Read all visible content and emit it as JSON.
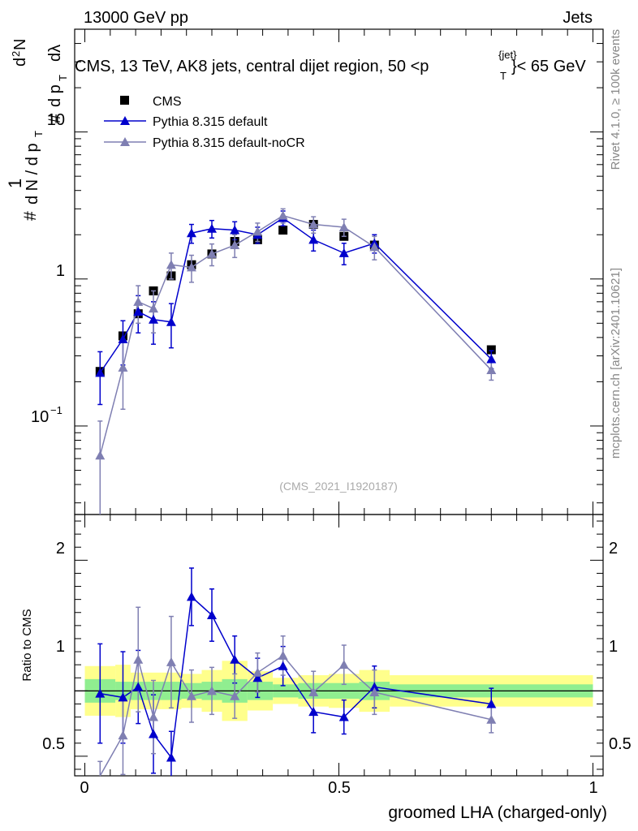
{
  "header": {
    "energy": "13000 GeV pp",
    "category": "Jets",
    "main_title": "CMS, 13 TeV, AK8 jets, central dijet region, 50 <p",
    "main_title_sup": "{jet}",
    "main_title_sub": "T",
    "main_title_end": "}< 65 GeV",
    "analysis_id": "(CMS_2021_I1920187)"
  },
  "side_labels": {
    "rivet": "Rivet 4.1.0, ≥ 100k events",
    "mcplots": "mcplots.cern.ch [arXiv:2401.10621]"
  },
  "colors": {
    "cms": "#000000",
    "default": "#0000cc",
    "nocr": "#7f7fb2",
    "band_inner": "#90ee90",
    "band_outer": "#ffff8c"
  },
  "chart_data": [
    {
      "type": "scatter",
      "name": "main",
      "yscale": "log",
      "ylim": [
        0.025,
        50
      ],
      "xlim": [
        -0.02,
        1.02
      ],
      "ylabel": "# 1/(d N / d p_T) # d²N/(d p_T dλ)",
      "ylabel_parts": {
        "hash": "#",
        "one": "1",
        "dN": "d N / d p",
        "T": "T",
        "d2N": "d",
        "two": "2",
        "N": "N",
        "dp": "d p",
        "dlambda": "dλ"
      },
      "yticks": [
        {
          "label_base": "10",
          "label_exp": "−1",
          "value": 0.1
        },
        {
          "label": "1",
          "value": 1
        },
        {
          "label": "10",
          "value": 10
        }
      ],
      "legend": [
        "CMS",
        "Pythia 8.315 default",
        "Pythia 8.315 default-noCR"
      ],
      "series": [
        {
          "name": "CMS",
          "x": [
            0.03,
            0.075,
            0.105,
            0.135,
            0.17,
            0.21,
            0.25,
            0.295,
            0.34,
            0.39,
            0.45,
            0.51,
            0.57,
            0.8
          ],
          "y": [
            0.235,
            0.41,
            0.58,
            0.83,
            1.05,
            1.25,
            1.48,
            1.8,
            1.85,
            2.15,
            2.35,
            1.95,
            1.7,
            0.33
          ]
        },
        {
          "name": "Pythia 8.315 default",
          "x": [
            0.03,
            0.075,
            0.105,
            0.135,
            0.17,
            0.21,
            0.25,
            0.295,
            0.34,
            0.39,
            0.45,
            0.51,
            0.57,
            0.8
          ],
          "y": [
            0.23,
            0.39,
            0.6,
            0.53,
            0.51,
            2.05,
            2.2,
            2.15,
            2.0,
            2.6,
            1.85,
            1.5,
            1.75,
            0.285
          ],
          "err": [
            0.09,
            0.13,
            0.17,
            0.17,
            0.17,
            0.3,
            0.3,
            0.3,
            0.25,
            0.3,
            0.3,
            0.25,
            0.25,
            0.04
          ]
        },
        {
          "name": "Pythia 8.315 default-noCR",
          "x": [
            0.03,
            0.075,
            0.105,
            0.135,
            0.17,
            0.21,
            0.25,
            0.295,
            0.34,
            0.39,
            0.45,
            0.51,
            0.57,
            0.8
          ],
          "y": [
            0.063,
            0.25,
            0.7,
            0.63,
            1.25,
            1.2,
            1.48,
            1.7,
            2.1,
            2.7,
            2.35,
            2.25,
            1.65,
            0.24
          ],
          "err": [
            0.045,
            0.12,
            0.2,
            0.2,
            0.25,
            0.25,
            0.25,
            0.3,
            0.3,
            0.3,
            0.3,
            0.3,
            0.3,
            0.035
          ]
        }
      ]
    },
    {
      "type": "scatter",
      "name": "ratio",
      "ylim": [
        0.35,
        2.35
      ],
      "xlim": [
        -0.02,
        1.02
      ],
      "xlabel": "groomed LHA (charged-only)",
      "ylabel": "Ratio to CMS",
      "yticks": [
        {
          "label": "0.5",
          "value": 0.5
        },
        {
          "label": "1",
          "value": 1
        },
        {
          "label": "2",
          "value": 2
        }
      ],
      "xticks": [
        {
          "label": "0",
          "value": 0
        },
        {
          "label": "0.5",
          "value": 0.5
        },
        {
          "label": "1",
          "value": 1
        }
      ],
      "bands": [
        {
          "x0": 0.0,
          "x1": 0.06,
          "inner": 0.09,
          "outer": 0.19
        },
        {
          "x0": 0.06,
          "x1": 0.09,
          "inner": 0.07,
          "outer": 0.2
        },
        {
          "x0": 0.09,
          "x1": 0.12,
          "inner": 0.07,
          "outer": 0.14
        },
        {
          "x0": 0.12,
          "x1": 0.15,
          "inner": 0.07,
          "outer": 0.14
        },
        {
          "x0": 0.15,
          "x1": 0.19,
          "inner": 0.07,
          "outer": 0.14
        },
        {
          "x0": 0.19,
          "x1": 0.23,
          "inner": 0.06,
          "outer": 0.13
        },
        {
          "x0": 0.23,
          "x1": 0.27,
          "inner": 0.07,
          "outer": 0.16
        },
        {
          "x0": 0.27,
          "x1": 0.32,
          "inner": 0.09,
          "outer": 0.23
        },
        {
          "x0": 0.32,
          "x1": 0.37,
          "inner": 0.07,
          "outer": 0.15
        },
        {
          "x0": 0.37,
          "x1": 0.42,
          "inner": 0.05,
          "outer": 0.1
        },
        {
          "x0": 0.42,
          "x1": 0.48,
          "inner": 0.06,
          "outer": 0.12
        },
        {
          "x0": 0.48,
          "x1": 0.54,
          "inner": 0.06,
          "outer": 0.13
        },
        {
          "x0": 0.54,
          "x1": 0.6,
          "inner": 0.07,
          "outer": 0.16
        },
        {
          "x0": 0.6,
          "x1": 1.0,
          "inner": 0.05,
          "outer": 0.12
        }
      ],
      "series": [
        {
          "name": "Pythia 8.315 default",
          "x": [
            0.03,
            0.075,
            0.105,
            0.135,
            0.17,
            0.21,
            0.25,
            0.295,
            0.34,
            0.39,
            0.45,
            0.51,
            0.57,
            0.8
          ],
          "y": [
            0.98,
            0.95,
            1.03,
            0.67,
            0.49,
            1.72,
            1.58,
            1.24,
            1.1,
            1.19,
            0.84,
            0.8,
            1.03,
            0.9
          ],
          "err": [
            0.38,
            0.35,
            0.28,
            0.3,
            0.2,
            0.22,
            0.2,
            0.18,
            0.15,
            0.15,
            0.16,
            0.13,
            0.16,
            0.12
          ]
        },
        {
          "name": "Pythia 8.315 default-noCR",
          "x": [
            0.03,
            0.075,
            0.105,
            0.135,
            0.17,
            0.21,
            0.25,
            0.295,
            0.34,
            0.39,
            0.45,
            0.51,
            0.57,
            0.8
          ],
          "y": [
            0.26,
            0.66,
            1.24,
            0.8,
            1.22,
            0.96,
            1.0,
            0.96,
            1.14,
            1.27,
            0.99,
            1.2,
            0.99,
            0.78
          ],
          "err": [
            0.2,
            0.3,
            0.4,
            0.28,
            0.35,
            0.2,
            0.18,
            0.17,
            0.15,
            0.15,
            0.16,
            0.15,
            0.17,
            0.1
          ]
        }
      ]
    }
  ]
}
